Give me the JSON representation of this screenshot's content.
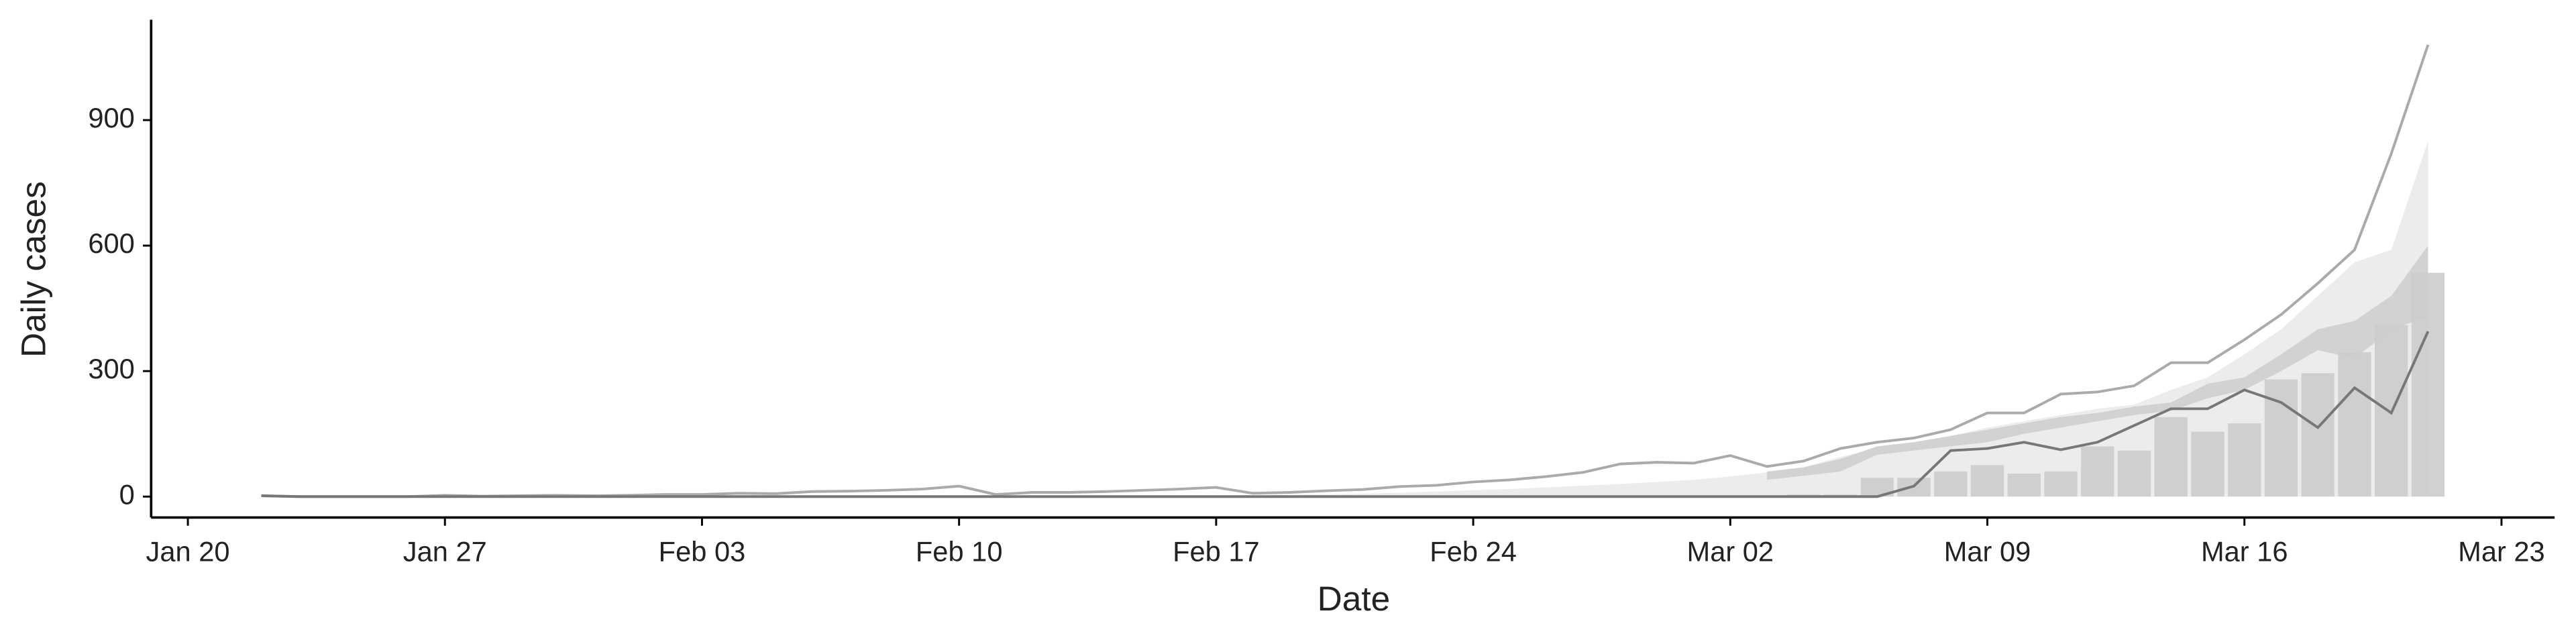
{
  "chart_data": {
    "type": "bar",
    "x_label": "Date",
    "y_label": "Daily cases",
    "xlim": [
      "Jan 19",
      "Mar 24"
    ],
    "xticks": [
      "Jan 20",
      "Jan 27",
      "Feb 03",
      "Feb 10",
      "Feb 17",
      "Feb 24",
      "Mar 02",
      "Mar 09",
      "Mar 16",
      "Mar 23"
    ],
    "ylim": [
      -50,
      1140
    ],
    "yticks": [
      0,
      300,
      600,
      900
    ],
    "x": [
      "Jan 22",
      "Jan 23",
      "Jan 24",
      "Jan 25",
      "Jan 26",
      "Jan 27",
      "Jan 28",
      "Jan 29",
      "Jan 30",
      "Jan 31",
      "Feb 01",
      "Feb 02",
      "Feb 03",
      "Feb 04",
      "Feb 05",
      "Feb 06",
      "Feb 07",
      "Feb 08",
      "Feb 09",
      "Feb 10",
      "Feb 11",
      "Feb 12",
      "Feb 13",
      "Feb 14",
      "Feb 15",
      "Feb 16",
      "Feb 17",
      "Feb 18",
      "Feb 19",
      "Feb 20",
      "Feb 21",
      "Feb 22",
      "Feb 23",
      "Feb 24",
      "Feb 25",
      "Feb 26",
      "Feb 27",
      "Feb 28",
      "Feb 29",
      "Mar 01",
      "Mar 02",
      "Mar 03",
      "Mar 04",
      "Mar 05",
      "Mar 06",
      "Mar 07",
      "Mar 08",
      "Mar 09",
      "Mar 10",
      "Mar 11",
      "Mar 12",
      "Mar 13",
      "Mar 14",
      "Mar 15",
      "Mar 16",
      "Mar 17",
      "Mar 18",
      "Mar 19",
      "Mar 20",
      "Mar 21"
    ],
    "series": [
      {
        "style": "band",
        "color": "#ececec",
        "low": [
          null,
          null,
          null,
          null,
          null,
          null,
          null,
          null,
          null,
          null,
          null,
          null,
          null,
          null,
          null,
          null,
          null,
          null,
          null,
          null,
          null,
          null,
          null,
          null,
          null,
          null,
          0,
          0,
          0,
          0,
          0,
          0,
          0,
          0,
          0,
          0,
          0,
          0,
          0,
          0,
          0,
          0,
          0,
          0,
          0,
          0,
          0,
          0,
          0,
          0,
          0,
          0,
          0,
          0,
          0,
          0,
          0,
          0,
          0,
          0
        ],
        "high": [
          null,
          null,
          null,
          null,
          null,
          null,
          null,
          null,
          null,
          null,
          null,
          null,
          null,
          null,
          null,
          null,
          null,
          null,
          null,
          null,
          null,
          null,
          null,
          null,
          null,
          null,
          2,
          3,
          4,
          5,
          7,
          9,
          12,
          15,
          18,
          22,
          26,
          30,
          35,
          40,
          48,
          58,
          70,
          95,
          115,
          130,
          145,
          165,
          180,
          195,
          210,
          220,
          255,
          285,
          340,
          400,
          480,
          560,
          590,
          850
        ]
      },
      {
        "style": "band",
        "color": "#d2d2d2",
        "low": [
          null,
          null,
          null,
          null,
          null,
          null,
          null,
          null,
          null,
          null,
          null,
          null,
          null,
          null,
          null,
          null,
          null,
          null,
          null,
          null,
          null,
          null,
          null,
          null,
          null,
          null,
          null,
          null,
          null,
          null,
          null,
          null,
          null,
          null,
          null,
          null,
          null,
          null,
          null,
          null,
          null,
          40,
          50,
          60,
          100,
          110,
          120,
          130,
          150,
          165,
          180,
          195,
          205,
          235,
          255,
          300,
          350,
          330,
          400,
          430
        ],
        "high": [
          null,
          null,
          null,
          null,
          null,
          null,
          null,
          null,
          null,
          null,
          null,
          null,
          null,
          null,
          null,
          null,
          null,
          null,
          null,
          null,
          null,
          null,
          null,
          null,
          null,
          null,
          null,
          null,
          null,
          null,
          null,
          null,
          null,
          null,
          null,
          null,
          null,
          null,
          null,
          null,
          null,
          60,
          70,
          90,
          120,
          130,
          145,
          160,
          175,
          190,
          200,
          215,
          225,
          270,
          285,
          340,
          400,
          420,
          480,
          600
        ]
      },
      {
        "style": "bar",
        "color": "#cccccc",
        "values": [
          null,
          null,
          null,
          null,
          null,
          null,
          null,
          null,
          null,
          null,
          null,
          null,
          null,
          null,
          null,
          null,
          null,
          null,
          null,
          null,
          null,
          null,
          null,
          null,
          null,
          null,
          null,
          null,
          null,
          null,
          null,
          null,
          null,
          null,
          null,
          null,
          null,
          null,
          null,
          null,
          3,
          3,
          5,
          5,
          45,
          45,
          60,
          75,
          55,
          60,
          120,
          110,
          190,
          155,
          175,
          280,
          295,
          345,
          410,
          535
        ]
      },
      {
        "style": "line",
        "color": "#aaaaaa",
        "values": [
          2,
          0,
          0,
          0,
          0,
          3,
          1,
          2,
          3,
          2,
          3,
          5,
          5,
          8,
          7,
          12,
          13,
          15,
          18,
          25,
          5,
          10,
          10,
          12,
          15,
          18,
          22,
          8,
          10,
          14,
          17,
          24,
          27,
          35,
          40,
          48,
          58,
          78,
          82,
          80,
          98,
          72,
          85,
          115,
          130,
          140,
          160,
          200,
          200,
          245,
          250,
          265,
          320,
          320,
          375,
          435,
          510,
          590,
          820,
          1080
        ]
      },
      {
        "style": "line",
        "color": "#777777",
        "values": [
          2,
          0,
          0,
          0,
          0,
          0,
          0,
          0,
          0,
          0,
          0,
          0,
          0,
          0,
          0,
          0,
          0,
          0,
          0,
          0,
          0,
          0,
          0,
          0,
          0,
          0,
          0,
          0,
          0,
          0,
          0,
          0,
          0,
          0,
          0,
          0,
          0,
          0,
          0,
          0,
          0,
          0,
          0,
          0,
          0,
          25,
          110,
          115,
          130,
          112,
          130,
          170,
          210,
          210,
          255,
          225,
          165,
          260,
          200,
          395
        ]
      }
    ]
  }
}
